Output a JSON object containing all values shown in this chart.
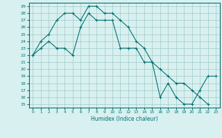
{
  "xlabel": "Humidex (Indice chaleur)",
  "line1_x": [
    0,
    1,
    2,
    3,
    4,
    5,
    6,
    7,
    8,
    9,
    10,
    11,
    12,
    13,
    14,
    15,
    16,
    17,
    18,
    19,
    20,
    21,
    22
  ],
  "line1_y": [
    22,
    24,
    25,
    27,
    28,
    28,
    27,
    29,
    29,
    28,
    28,
    27,
    26,
    24,
    23,
    21,
    20,
    19,
    18,
    18,
    17,
    16,
    15
  ],
  "line2_x": [
    0,
    1,
    2,
    3,
    4,
    5,
    6,
    7,
    8,
    9,
    10,
    11,
    12,
    13,
    14,
    15,
    16,
    17,
    18,
    19,
    20,
    21,
    22,
    23
  ],
  "line2_y": [
    22,
    23,
    24,
    23,
    23,
    22,
    26,
    28,
    27,
    27,
    27,
    23,
    23,
    23,
    21,
    21,
    16,
    18,
    16,
    15,
    15,
    17,
    19,
    19
  ],
  "line_color": "#007070",
  "bg_color": "#d8f0f0",
  "grid_color": "#a0c8c8",
  "xlim": [
    -0.5,
    23.5
  ],
  "ylim": [
    14.5,
    29.5
  ],
  "yticks": [
    15,
    16,
    17,
    18,
    19,
    20,
    21,
    22,
    23,
    24,
    25,
    26,
    27,
    28,
    29
  ],
  "xticks": [
    0,
    1,
    2,
    3,
    4,
    5,
    6,
    7,
    8,
    9,
    10,
    11,
    12,
    13,
    14,
    15,
    16,
    17,
    18,
    19,
    20,
    21,
    22,
    23
  ]
}
